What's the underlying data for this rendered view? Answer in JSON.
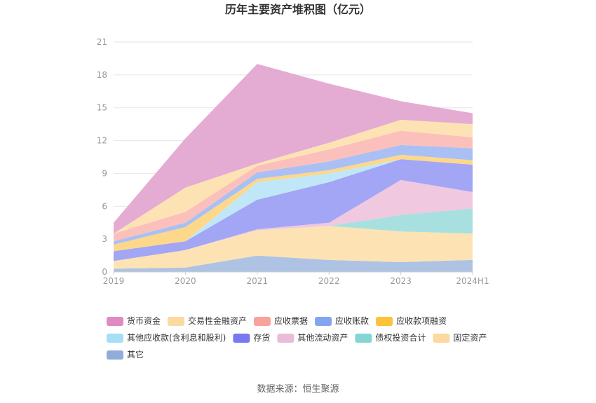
{
  "chart_data": {
    "type": "area",
    "stacked": true,
    "title": "历年主要资产堆积图（亿元）",
    "x": [
      "2019",
      "2020",
      "2021",
      "2022",
      "2023",
      "2024H1"
    ],
    "ylim": [
      0,
      21
    ],
    "yticks": [
      0,
      3,
      6,
      9,
      12,
      15,
      18,
      21
    ],
    "grid": true,
    "legend_position": "bottom",
    "series": [
      {
        "name": "其它",
        "color": "#aec3e3",
        "values": [
          0.3,
          0.4,
          1.5,
          1.1,
          0.9,
          1.1
        ]
      },
      {
        "name": "固定资产",
        "color": "#fde3b3",
        "values": [
          0.7,
          1.6,
          2.3,
          3.1,
          2.8,
          2.4
        ]
      },
      {
        "name": "债权投资合计",
        "color": "#a8e0e0",
        "values": [
          0,
          0,
          0,
          0,
          1.5,
          2.3
        ]
      },
      {
        "name": "其他流动资产",
        "color": "#f0c8e0",
        "values": [
          0,
          0,
          0.1,
          0.3,
          3.2,
          1.5
        ]
      },
      {
        "name": "存货",
        "color": "#a3a5f5",
        "values": [
          0.9,
          0.8,
          2.7,
          3.7,
          1.9,
          2.5
        ]
      },
      {
        "name": "其他应收款(含利息和股利)",
        "color": "#c0e7f7",
        "values": [
          0,
          0,
          1.6,
          0.8,
          0,
          0
        ]
      },
      {
        "name": "应收款项融资",
        "color": "#fdd88a",
        "values": [
          0.6,
          1.3,
          0.3,
          0.3,
          0.4,
          0.4
        ]
      },
      {
        "name": "应收账款",
        "color": "#aac0f5",
        "values": [
          0.3,
          0.4,
          0.6,
          0.8,
          0.9,
          1.1
        ]
      },
      {
        "name": "应收票据",
        "color": "#fcc0bc",
        "values": [
          0.7,
          1.0,
          0.6,
          1.1,
          1.3,
          1.0
        ]
      },
      {
        "name": "交易性金融资产",
        "color": "#fde3b3",
        "values": [
          0,
          2.2,
          0.2,
          0.6,
          1.0,
          1.2
        ]
      },
      {
        "name": "货币资金",
        "color": "#e5acd3",
        "values": [
          1.0,
          4.5,
          9.1,
          5.4,
          1.7,
          1.0
        ]
      }
    ]
  },
  "legend": [
    {
      "label": "货币资金",
      "color": "#e08ac2"
    },
    {
      "label": "交易性金融资产",
      "color": "#fcd9a0"
    },
    {
      "label": "应收票据",
      "color": "#f9a29c"
    },
    {
      "label": "应收账款",
      "color": "#85a4f0"
    },
    {
      "label": "应收款项融资",
      "color": "#fbc23a"
    },
    {
      "label": "其他应收款(含利息和股利)",
      "color": "#a6def5"
    },
    {
      "label": "存货",
      "color": "#7878f0"
    },
    {
      "label": "其他流动资产",
      "color": "#e9bcd8"
    },
    {
      "label": "债权投资合计",
      "color": "#86d5d5"
    },
    {
      "label": "固定资产",
      "color": "#fcd9a0"
    },
    {
      "label": "其它",
      "color": "#91acd9"
    }
  ],
  "source": "数据来源：恒生聚源"
}
